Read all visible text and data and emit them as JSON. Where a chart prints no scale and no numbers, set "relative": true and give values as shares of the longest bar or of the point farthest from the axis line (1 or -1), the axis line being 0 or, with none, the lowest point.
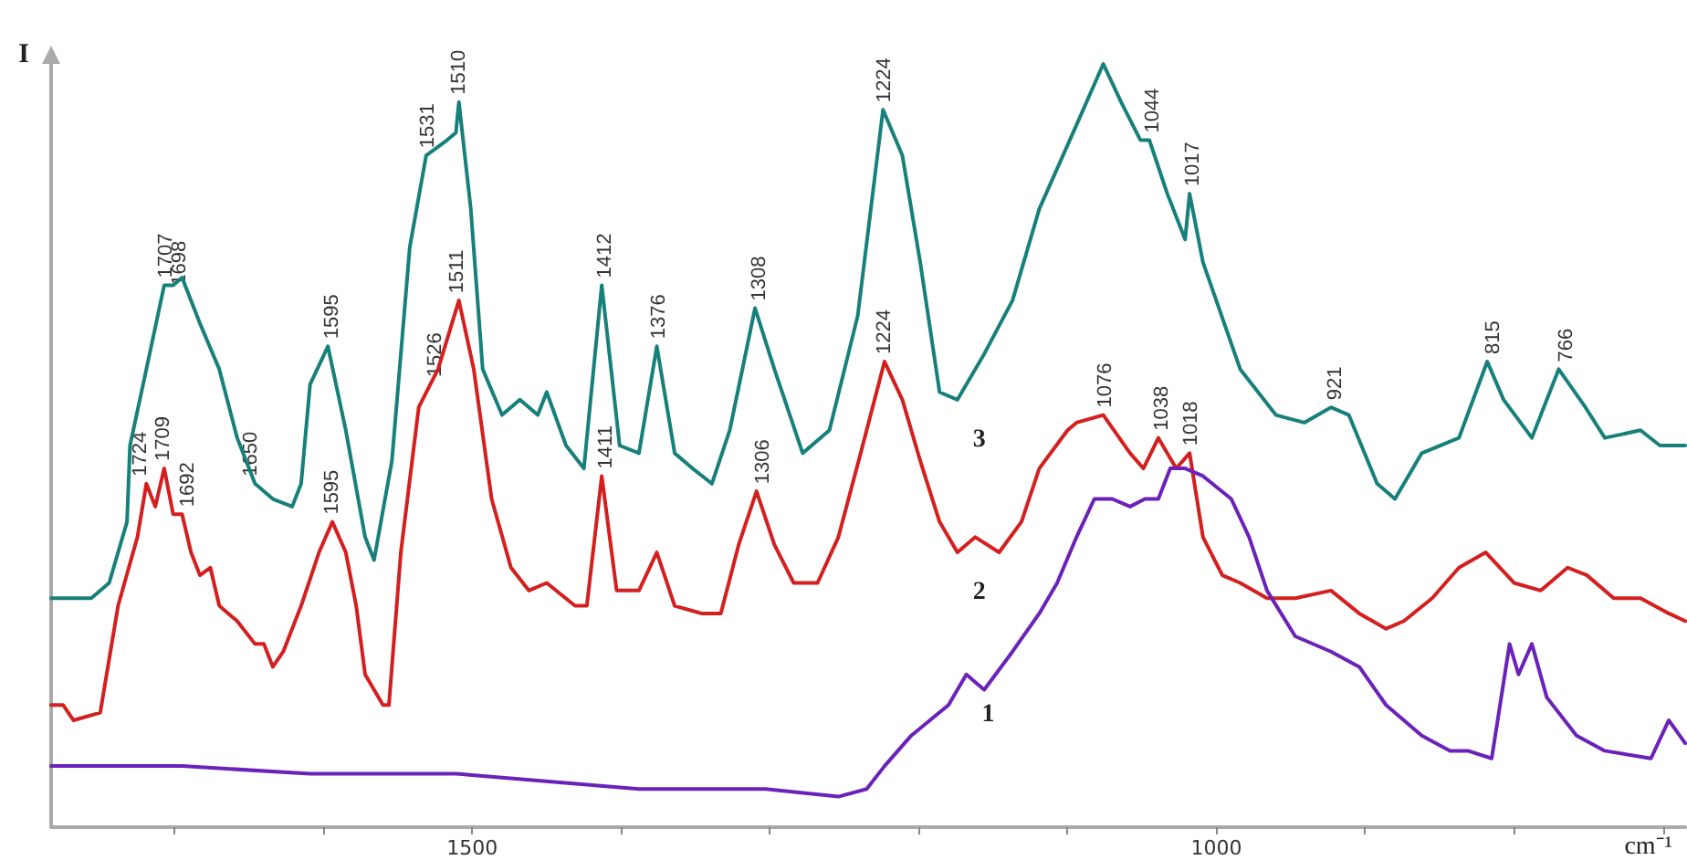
{
  "chart_data": {
    "type": "line",
    "relative": true,
    "xlabel": "cm⁻¹",
    "ylabel": "I",
    "xlim": [
      1783,
      685
    ],
    "xticks": [
      {
        "value": 1700,
        "label": null
      },
      {
        "value": 1600,
        "label": null
      },
      1500,
      {
        "value": 1400,
        "label": null
      },
      {
        "value": 1300,
        "label": null
      },
      {
        "value": 1200,
        "label": null
      },
      {
        "value": 1100,
        "label": null
      },
      1000,
      {
        "value": 900,
        "label": null
      },
      {
        "value": 800,
        "label": null
      },
      {
        "value": 700,
        "label": null
      }
    ],
    "grid": false,
    "legend": false,
    "marker": "none",
    "line_style": "solid",
    "series": [
      {
        "name": "3",
        "color": "#17807b",
        "x": [
          1783,
          1756,
          1744,
          1732,
          1730,
          1719,
          1707,
          1701,
          1695,
          1683,
          1670,
          1658,
          1646,
          1634,
          1621,
          1615,
          1609,
          1597,
          1585,
          1572,
          1566,
          1554,
          1542,
          1531,
          1517,
          1511,
          1509,
          1501,
          1493,
          1480,
          1468,
          1456,
          1450,
          1437,
          1425,
          1413,
          1401,
          1388,
          1376,
          1364,
          1352,
          1339,
          1327,
          1310,
          1297,
          1278,
          1260,
          1241,
          1224,
          1211,
          1199,
          1186,
          1174,
          1156,
          1137,
          1119,
          1094,
          1076,
          1064,
          1051,
          1045,
          1033,
          1021,
          1018,
          1009,
          984,
          960,
          941,
          923,
          911,
          892,
          880,
          862,
          837,
          818,
          807,
          788,
          770,
          752,
          739,
          715,
          702,
          685
        ],
        "values": [
          0.3,
          0.3,
          0.32,
          0.4,
          0.5,
          0.6,
          0.71,
          0.71,
          0.72,
          0.66,
          0.6,
          0.51,
          0.45,
          0.43,
          0.42,
          0.45,
          0.58,
          0.63,
          0.52,
          0.38,
          0.35,
          0.48,
          0.76,
          0.88,
          0.9,
          0.91,
          0.95,
          0.81,
          0.6,
          0.54,
          0.56,
          0.54,
          0.57,
          0.5,
          0.47,
          0.71,
          0.5,
          0.49,
          0.63,
          0.49,
          0.47,
          0.45,
          0.52,
          0.68,
          0.6,
          0.49,
          0.52,
          0.67,
          0.94,
          0.88,
          0.74,
          0.57,
          0.56,
          0.62,
          0.69,
          0.81,
          0.92,
          1.0,
          0.95,
          0.9,
          0.9,
          0.83,
          0.77,
          0.83,
          0.74,
          0.6,
          0.54,
          0.53,
          0.55,
          0.54,
          0.45,
          0.43,
          0.49,
          0.51,
          0.61,
          0.56,
          0.51,
          0.6,
          0.55,
          0.51,
          0.52,
          0.5,
          0.5
        ]
      },
      {
        "name": "2",
        "color": "#d41f1f",
        "x": [
          1783,
          1775,
          1768,
          1750,
          1738,
          1725,
          1719,
          1713,
          1707,
          1701,
          1695,
          1689,
          1683,
          1676,
          1670,
          1658,
          1646,
          1640,
          1634,
          1627,
          1615,
          1603,
          1594,
          1585,
          1578,
          1572,
          1560,
          1556,
          1548,
          1536,
          1523,
          1509,
          1499,
          1487,
          1474,
          1462,
          1450,
          1431,
          1423,
          1413,
          1403,
          1388,
          1376,
          1364,
          1346,
          1333,
          1321,
          1309,
          1297,
          1284,
          1268,
          1254,
          1239,
          1223,
          1211,
          1199,
          1186,
          1174,
          1162,
          1146,
          1131,
          1119,
          1100,
          1094,
          1076,
          1058,
          1049,
          1039,
          1027,
          1018,
          1009,
          996,
          984,
          966,
          947,
          923,
          904,
          886,
          874,
          855,
          837,
          819,
          800,
          782,
          764,
          751,
          733,
          715,
          696,
          685
        ],
        "values": [
          0.16,
          0.16,
          0.14,
          0.15,
          0.29,
          0.38,
          0.45,
          0.42,
          0.47,
          0.41,
          0.41,
          0.36,
          0.33,
          0.34,
          0.29,
          0.27,
          0.24,
          0.24,
          0.21,
          0.23,
          0.29,
          0.36,
          0.4,
          0.36,
          0.29,
          0.2,
          0.16,
          0.16,
          0.36,
          0.55,
          0.6,
          0.69,
          0.6,
          0.43,
          0.34,
          0.31,
          0.32,
          0.29,
          0.29,
          0.46,
          0.31,
          0.31,
          0.36,
          0.29,
          0.28,
          0.28,
          0.37,
          0.44,
          0.37,
          0.32,
          0.32,
          0.38,
          0.49,
          0.61,
          0.56,
          0.48,
          0.4,
          0.36,
          0.38,
          0.36,
          0.4,
          0.47,
          0.52,
          0.53,
          0.54,
          0.49,
          0.47,
          0.51,
          0.47,
          0.49,
          0.38,
          0.33,
          0.32,
          0.3,
          0.3,
          0.31,
          0.28,
          0.26,
          0.27,
          0.3,
          0.34,
          0.36,
          0.32,
          0.31,
          0.34,
          0.33,
          0.3,
          0.3,
          0.28,
          0.27
        ]
      },
      {
        "name": "1",
        "color": "#6a22b8",
        "x": [
          1783,
          1695,
          1609,
          1511,
          1388,
          1303,
          1254,
          1235,
          1223,
          1205,
          1180,
          1168,
          1162,
          1156,
          1137,
          1119,
          1107,
          1094,
          1082,
          1070,
          1058,
          1048,
          1039,
          1031,
          1021,
          1009,
          990,
          978,
          966,
          947,
          923,
          904,
          886,
          862,
          843,
          831,
          815,
          803,
          797,
          788,
          778,
          758,
          739,
          708,
          696,
          685
        ],
        "values": [
          0.08,
          0.08,
          0.07,
          0.07,
          0.05,
          0.05,
          0.04,
          0.05,
          0.08,
          0.12,
          0.16,
          0.2,
          0.19,
          0.18,
          0.23,
          0.28,
          0.32,
          0.38,
          0.43,
          0.43,
          0.42,
          0.43,
          0.43,
          0.47,
          0.47,
          0.46,
          0.43,
          0.38,
          0.31,
          0.25,
          0.23,
          0.21,
          0.16,
          0.12,
          0.1,
          0.1,
          0.09,
          0.24,
          0.2,
          0.24,
          0.17,
          0.12,
          0.1,
          0.09,
          0.14,
          0.11
        ]
      }
    ],
    "annotations": [
      {
        "text": "1707",
        "x": 1707,
        "y": 0.71
      },
      {
        "text": "1698",
        "x": 1698,
        "y": 0.7
      },
      {
        "text": "1650",
        "x": 1650,
        "y": 0.45
      },
      {
        "text": "1595",
        "x": 1595,
        "y": 0.63
      },
      {
        "text": "1531",
        "x": 1531,
        "y": 0.88
      },
      {
        "text": "1510",
        "x": 1510,
        "y": 0.95
      },
      {
        "text": "1412",
        "x": 1412,
        "y": 0.71
      },
      {
        "text": "1376",
        "x": 1376,
        "y": 0.63
      },
      {
        "text": "1308",
        "x": 1308,
        "y": 0.68
      },
      {
        "text": "1224",
        "x": 1224,
        "y": 0.94
      },
      {
        "text": "1044",
        "x": 1044,
        "y": 0.9
      },
      {
        "text": "1017",
        "x": 1017,
        "y": 0.83
      },
      {
        "text": "921",
        "x": 921,
        "y": 0.55
      },
      {
        "text": "815",
        "x": 815,
        "y": 0.61
      },
      {
        "text": "766",
        "x": 766,
        "y": 0.6
      },
      {
        "text": "1724",
        "x": 1724,
        "y": 0.45
      },
      {
        "text": "1709",
        "x": 1709,
        "y": 0.47
      },
      {
        "text": "1692",
        "x": 1692,
        "y": 0.41
      },
      {
        "text": "1595",
        "x": 1595,
        "y": 0.4
      },
      {
        "text": "1526",
        "x": 1526,
        "y": 0.58
      },
      {
        "text": "1511",
        "x": 1511,
        "y": 0.69
      },
      {
        "text": "1411",
        "x": 1411,
        "y": 0.46
      },
      {
        "text": "1306",
        "x": 1306,
        "y": 0.44
      },
      {
        "text": "1224",
        "x": 1224,
        "y": 0.61
      },
      {
        "text": "1076",
        "x": 1076,
        "y": 0.54
      },
      {
        "text": "1038",
        "x": 1038,
        "y": 0.51
      },
      {
        "text": "1018",
        "x": 1018,
        "y": 0.49
      }
    ]
  }
}
